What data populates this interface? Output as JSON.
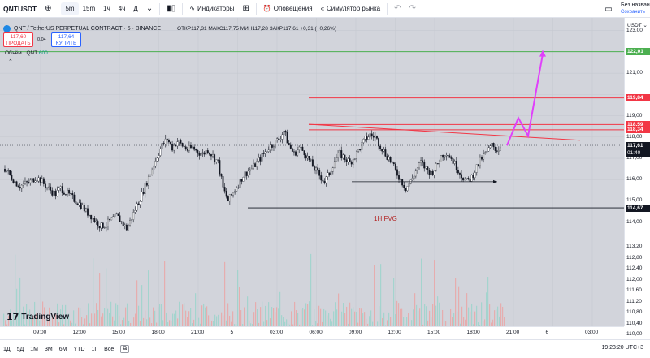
{
  "toolbar": {
    "symbol": "QNTUSD⁠T",
    "add_icon": "plus-circle-icon",
    "intervals": [
      "5m",
      "15m",
      "1ч",
      "4ч",
      "Д"
    ],
    "active_interval": "5m",
    "indicators_label": "Индикаторы",
    "alerts_label": "Оповещения",
    "replay_label": "Симулятор рынка",
    "unsaved_title": "Без назван",
    "unsaved_sub": "Сохранить"
  },
  "legend": {
    "title": "QNT / TetherUS PERPETUAL CONTRACT · 5 · BINANCE",
    "ohlc": "ОТКР117,31 МАКС117,75 МИН117,28 ЗАКР117,61 +0,31 (+0,26%)",
    "sell_price": "117,60",
    "sell_label": "ПРОДАТЬ",
    "spread": "0,04",
    "buy_price": "117,64",
    "buy_label": "КУПИТЬ",
    "volume_label": "Объём · QNT",
    "volume_value": "600"
  },
  "chart_data": {
    "type": "candlestick",
    "symbol": "QNT / TetherUS PERPETUAL CONTRACT",
    "interval": "5",
    "exchange": "BINANCE",
    "x_ticks": [
      "09:00",
      "12:00",
      "15:00",
      "18:00",
      "21:00",
      "5",
      "03:00",
      "06:00",
      "09:00",
      "12:00",
      "15:00",
      "18:00",
      "21:00",
      "6",
      "03:00"
    ],
    "y_ticks": [
      123.0,
      122.0,
      121.0,
      120.0,
      119.0,
      118.0,
      117.0,
      116.0,
      115.0,
      114.0,
      113.0,
      112.8,
      112.4,
      112.0,
      111.6,
      111.2,
      110.8,
      110.4,
      110.0
    ],
    "ylim": [
      109.8,
      123.6
    ],
    "close_series": [
      116.5,
      116.2,
      115.9,
      115.7,
      115.8,
      115.9,
      116.1,
      116.0,
      115.7,
      115.5,
      115.3,
      115.6,
      115.4,
      115.2,
      115.0,
      114.8,
      114.5,
      114.3,
      114.0,
      113.8,
      113.9,
      114.1,
      114.3,
      114.0,
      113.7,
      114.2,
      114.8,
      115.3,
      115.9,
      116.5,
      117.1,
      117.6,
      117.9,
      117.5,
      117.8,
      117.6,
      117.4,
      117.5,
      117.3,
      117.2,
      117.4,
      117.1,
      116.8,
      115.6,
      115.0,
      115.4,
      115.8,
      116.2,
      116.4,
      116.6,
      116.9,
      117.2,
      117.5,
      117.7,
      117.9,
      118.3,
      117.6,
      117.2,
      117.5,
      117.3,
      116.9,
      116.5,
      116.2,
      115.9,
      116.3,
      116.9,
      117.2,
      117.0,
      116.8,
      117.1,
      117.5,
      117.9,
      118.1,
      118.0,
      117.6,
      117.2,
      116.9,
      116.4,
      116.0,
      115.6,
      115.9,
      116.4,
      116.8,
      116.5,
      116.3,
      116.6,
      117.1,
      117.3,
      117.0,
      116.6,
      116.2,
      115.9,
      116.1,
      116.6,
      117.0,
      117.3,
      117.6,
      117.4,
      117.61
    ],
    "volume_ylim": [
      0,
      600
    ],
    "horizontal_levels": [
      {
        "price": 122.01,
        "label": "122,01",
        "color": "#4caf50"
      },
      {
        "price": 119.84,
        "label": "119,84",
        "color": "#f23645"
      },
      {
        "price": 118.59,
        "label": "118,59",
        "color": "#f23645"
      },
      {
        "price": 118.34,
        "label": "118,34",
        "color": "#f23645"
      },
      {
        "price": 114.67,
        "label": "114,67",
        "color": "#131722"
      }
    ],
    "last_price": {
      "price": 117.61,
      "label": "117,61",
      "countdown": "01:40"
    },
    "annotations": [
      "1H FVG"
    ],
    "currency": "USDT"
  },
  "colors": {
    "up": "#26a69a",
    "down": "#ef5350",
    "projection": "#e040fb",
    "support": "#f23645",
    "target": "#4caf50"
  },
  "bottom": {
    "ranges": [
      "1Д",
      "5Д",
      "1М",
      "3М",
      "6М",
      "YTD",
      "1Г",
      "Все"
    ],
    "clock": "19:23:20 UTC+3",
    "logo": "TradingView"
  }
}
